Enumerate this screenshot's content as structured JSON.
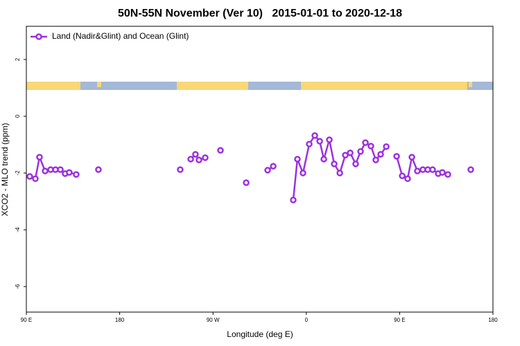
{
  "chart_data": {
    "type": "line",
    "title": "50N-55N November (Ver 10)   2015-01-01 to 2020-12-18",
    "x_label": "Longitude (deg E)",
    "y_label": "XCO2 - MLO trend (ppm)",
    "legend_position": "top-left",
    "xlim": [
      90,
      540
    ],
    "ylim": [
      -6.9,
      3.17
    ],
    "xticks": [
      {
        "value": 90,
        "label": "90 E"
      },
      180,
      {
        "value": 270,
        "label": "90 W"
      },
      {
        "value": 360,
        "label": "0"
      },
      {
        "value": 450,
        "label": "90 E"
      },
      {
        "value": 540,
        "label": "180"
      }
    ],
    "yticks": [
      2,
      0,
      -2,
      -4,
      -6
    ],
    "x": [
      93.3,
      98.7,
      102.7,
      108.1,
      113.4,
      118.1,
      122.8,
      127.4,
      131.4,
      138.1,
      null,
      159.5,
      null,
      238.4,
      null,
      248.5,
      253.1,
      256.5,
      262.5,
      null,
      277.2,
      null,
      302,
      null,
      322.7,
      328.1,
      null,
      347.4,
      351.4,
      356.8,
      362.8,
      368.2,
      372.9,
      376.9,
      382.2,
      386.9,
      392.3,
      397.6,
      402.3,
      407.6,
      412.3,
      417,
      422.3,
      427,
      431.7,
      437.1,
      null,
      447.1,
      452.5,
      457.7,
      461.8,
      467.1,
      472.4,
      477.1,
      481.8,
      487.2,
      491.2,
      496.5,
      null,
      518.6
    ],
    "series": [
      {
        "name": "Land (Nadir&Glint) and Ocean (Glint)",
        "color": "#9b30e0",
        "values": [
          -2.12,
          -2.2,
          -1.44,
          -1.93,
          -1.88,
          -1.88,
          -1.88,
          -2.02,
          -1.98,
          -2.05,
          null,
          -1.88,
          null,
          -1.88,
          null,
          -1.51,
          -1.34,
          -1.54,
          -1.46,
          null,
          -1.2,
          null,
          -2.34,
          null,
          -1.9,
          -1.76,
          null,
          -2.95,
          -1.51,
          -2.0,
          -0.98,
          -0.68,
          -0.88,
          -1.51,
          -0.83,
          -1.68,
          -2.0,
          -1.37,
          -1.29,
          -1.68,
          -1.24,
          -0.93,
          -1.05,
          -1.54,
          -1.34,
          -1.07,
          null,
          -1.41,
          -2.1,
          -2.2,
          -1.44,
          -1.93,
          -1.88,
          -1.88,
          -1.88,
          -2.02,
          -1.98,
          -2.05,
          null,
          -1.88
        ]
      }
    ]
  }
}
